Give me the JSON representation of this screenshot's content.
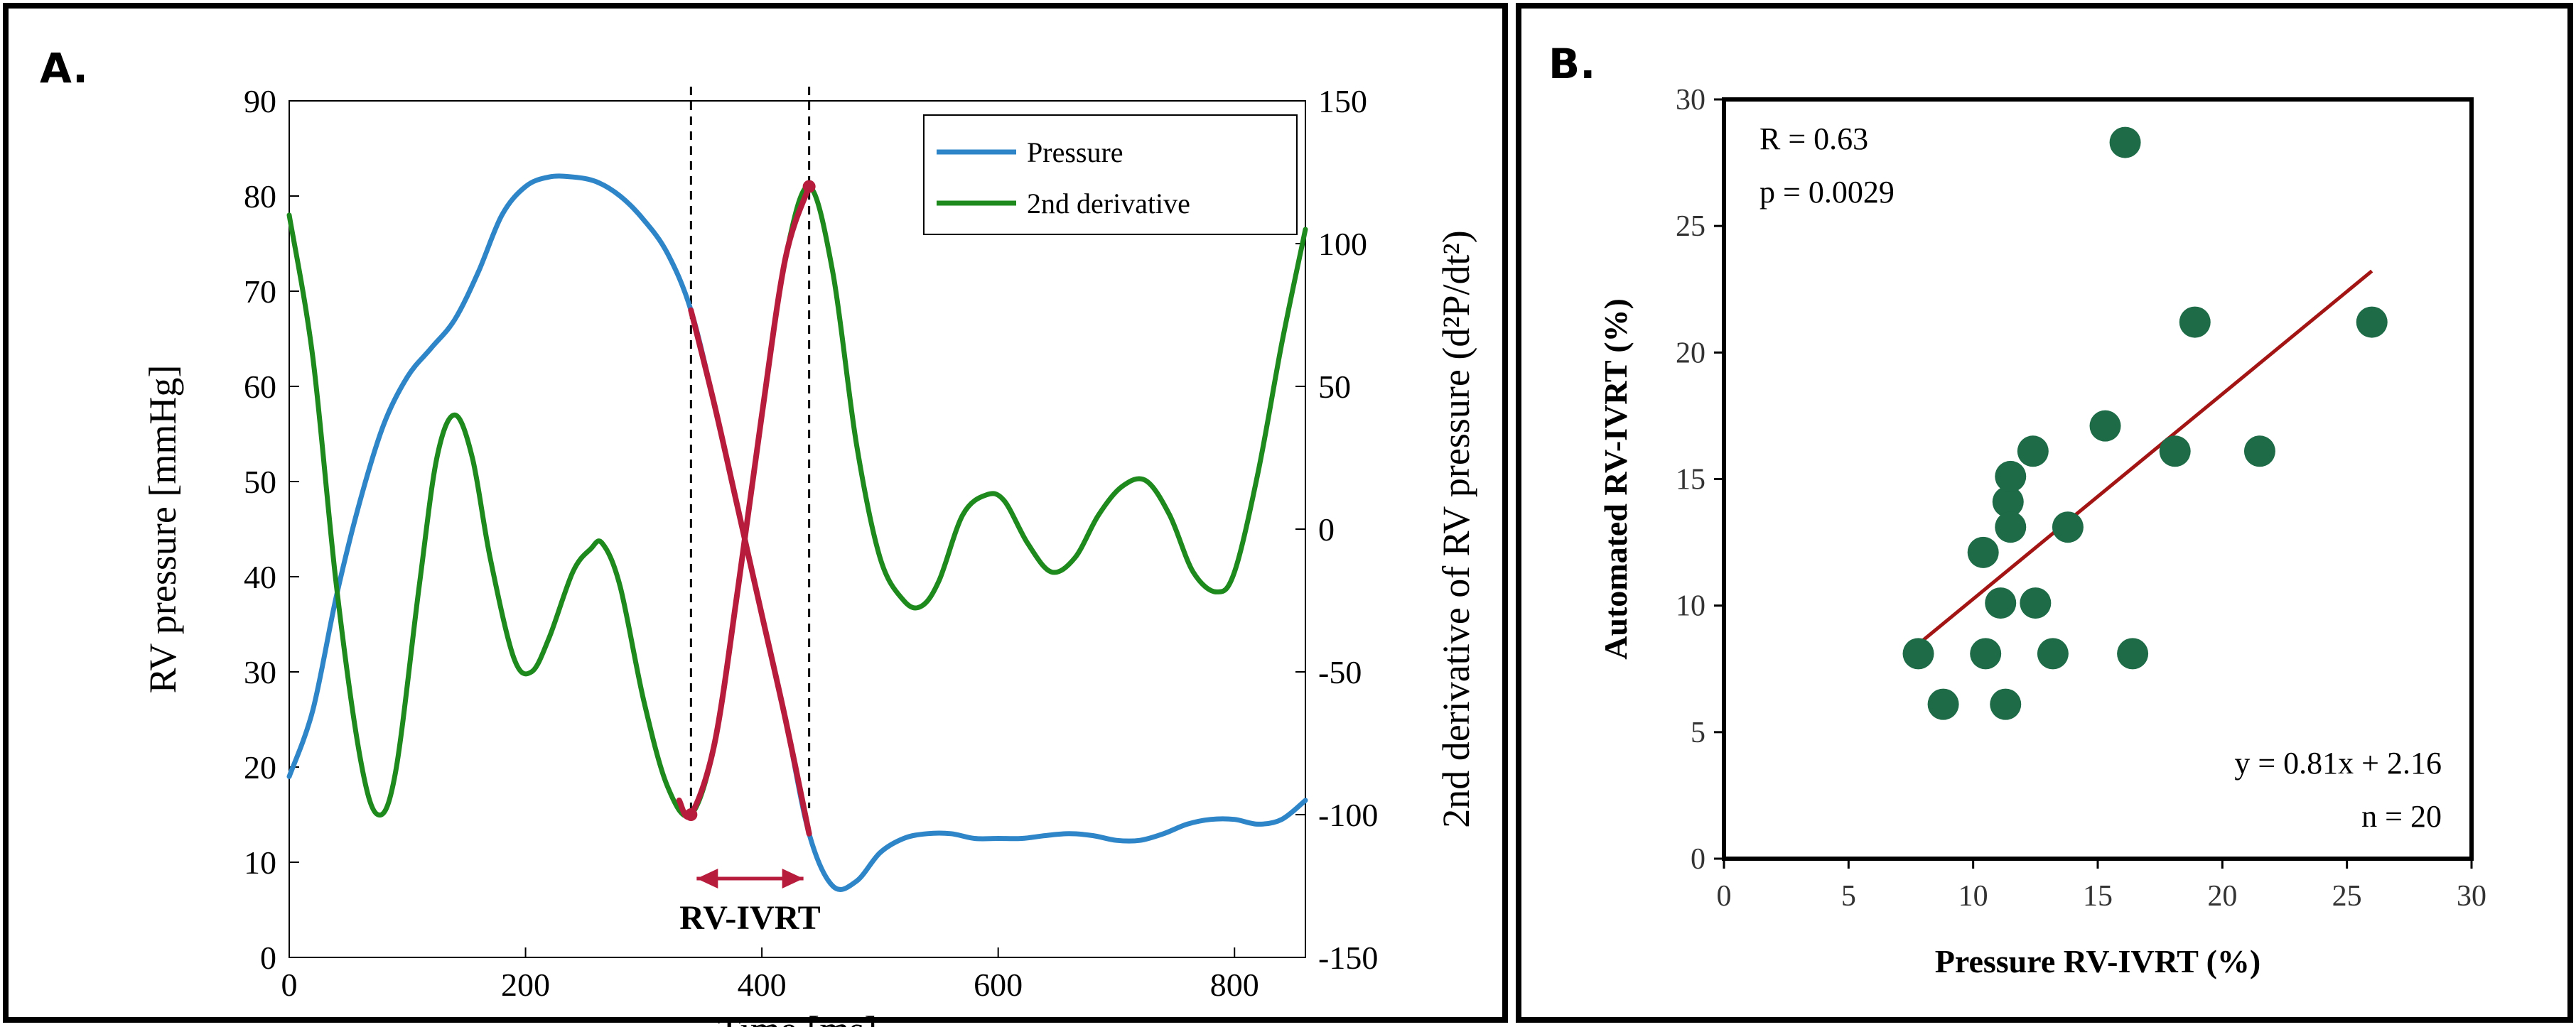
{
  "panel_a": {
    "label": "A.",
    "chart_data": {
      "type": "line",
      "xlabel": "Time [ms]",
      "ylabel": "RV pressure [mmHg]",
      "ylabel_right": "2nd derivative of RV pressure (d²P/dt²)",
      "xlim": [
        0,
        860
      ],
      "ylim": [
        0,
        90
      ],
      "ylim_right": [
        -150,
        150
      ],
      "xticks": [
        0,
        200,
        400,
        600,
        800
      ],
      "yticks": [
        0,
        10,
        20,
        30,
        40,
        50,
        60,
        70,
        80,
        90
      ],
      "yticks_right": [
        -150,
        -100,
        -50,
        0,
        50,
        100,
        150
      ],
      "legend_position": "top-right",
      "annotation": "RV-IVRT",
      "markers_x": [
        340,
        440
      ],
      "series": [
        {
          "name": "Pressure",
          "axis": "left",
          "color": "#2E86C8",
          "x": [
            0,
            20,
            40,
            60,
            80,
            100,
            120,
            140,
            160,
            180,
            200,
            220,
            240,
            260,
            280,
            300,
            320,
            340,
            360,
            380,
            400,
            420,
            440,
            460,
            480,
            500,
            520,
            540,
            560,
            580,
            600,
            620,
            640,
            660,
            680,
            700,
            720,
            740,
            760,
            780,
            800,
            820,
            840,
            860
          ],
          "values": [
            19,
            26,
            38,
            48,
            56,
            61,
            64,
            67,
            72,
            78,
            81,
            82,
            82,
            81.5,
            80,
            77.5,
            74,
            68,
            58,
            47,
            36,
            25,
            13,
            7.5,
            8,
            11,
            12.5,
            13,
            13,
            12.5,
            12.5,
            12.5,
            12.8,
            13,
            12.8,
            12.3,
            12.3,
            13,
            14,
            14.5,
            14.5,
            14,
            14.5,
            16.5
          ]
        },
        {
          "name": "2nd derivative",
          "axis": "right",
          "color": "#1E8A1E",
          "x": [
            0,
            20,
            40,
            60,
            75,
            90,
            110,
            125,
            140,
            155,
            170,
            190,
            205,
            220,
            240,
            255,
            265,
            280,
            300,
            320,
            340,
            360,
            380,
            400,
            420,
            440,
            460,
            480,
            500,
            520,
            535,
            550,
            570,
            590,
            605,
            625,
            645,
            665,
            685,
            705,
            725,
            745,
            765,
            785,
            800,
            820,
            840,
            860
          ],
          "values": [
            110,
            60,
            -20,
            -80,
            -100,
            -85,
            -20,
            25,
            40,
            25,
            -10,
            -45,
            -50,
            -38,
            -15,
            -7,
            -5,
            -20,
            -60,
            -90,
            -100,
            -75,
            -20,
            40,
            95,
            120,
            90,
            30,
            -10,
            -25,
            -27,
            -18,
            5,
            12,
            10,
            -5,
            -15,
            -10,
            5,
            15,
            17,
            5,
            -15,
            -22,
            -15,
            20,
            65,
            105
          ]
        },
        {
          "name": "",
          "axis": "left",
          "color": "#B71C3C",
          "x": [
            340,
            360,
            380,
            400,
            420,
            440
          ],
          "values": [
            68,
            58,
            47,
            36,
            25,
            13
          ]
        },
        {
          "name": "",
          "axis": "right",
          "color": "#B71C3C",
          "x": [
            330,
            340,
            360,
            380,
            400,
            420,
            440
          ],
          "values": [
            -95,
            -100,
            -75,
            -20,
            40,
            95,
            120
          ]
        }
      ]
    }
  },
  "panel_b": {
    "label": "B.",
    "annotations": {
      "r": "R = 0.63",
      "p": "p = 0.0029",
      "equation": "y = 0.81x + 2.16",
      "n": "n = 20"
    },
    "chart_data": {
      "type": "scatter",
      "xlabel": "Pressure RV-IVRT (%)",
      "ylabel": "Automated RV-IVRT (%)",
      "xlim": [
        0,
        30
      ],
      "ylim": [
        0,
        30
      ],
      "xticks": [
        0,
        5,
        10,
        15,
        20,
        25,
        30
      ],
      "yticks": [
        0,
        5,
        10,
        15,
        20,
        25,
        30
      ],
      "marker_color": "#1D6B47",
      "fit_color": "#A31515",
      "fit_line": {
        "slope": 0.81,
        "intercept": 2.16,
        "x_range": [
          7.8,
          26
        ]
      },
      "points": [
        [
          7.8,
          8.1
        ],
        [
          8.8,
          6.1
        ],
        [
          10.4,
          12.1
        ],
        [
          10.5,
          8.1
        ],
        [
          11.1,
          10.1
        ],
        [
          11.3,
          6.1
        ],
        [
          11.4,
          14.1
        ],
        [
          11.5,
          13.1
        ],
        [
          11.5,
          15.1
        ],
        [
          12.4,
          16.1
        ],
        [
          12.5,
          10.1
        ],
        [
          13.2,
          8.1
        ],
        [
          13.8,
          13.1
        ],
        [
          15.3,
          17.1
        ],
        [
          16.1,
          28.3
        ],
        [
          16.4,
          8.1
        ],
        [
          18.1,
          16.1
        ],
        [
          18.9,
          21.2
        ],
        [
          21.5,
          16.1
        ],
        [
          26.0,
          21.2
        ]
      ]
    }
  }
}
